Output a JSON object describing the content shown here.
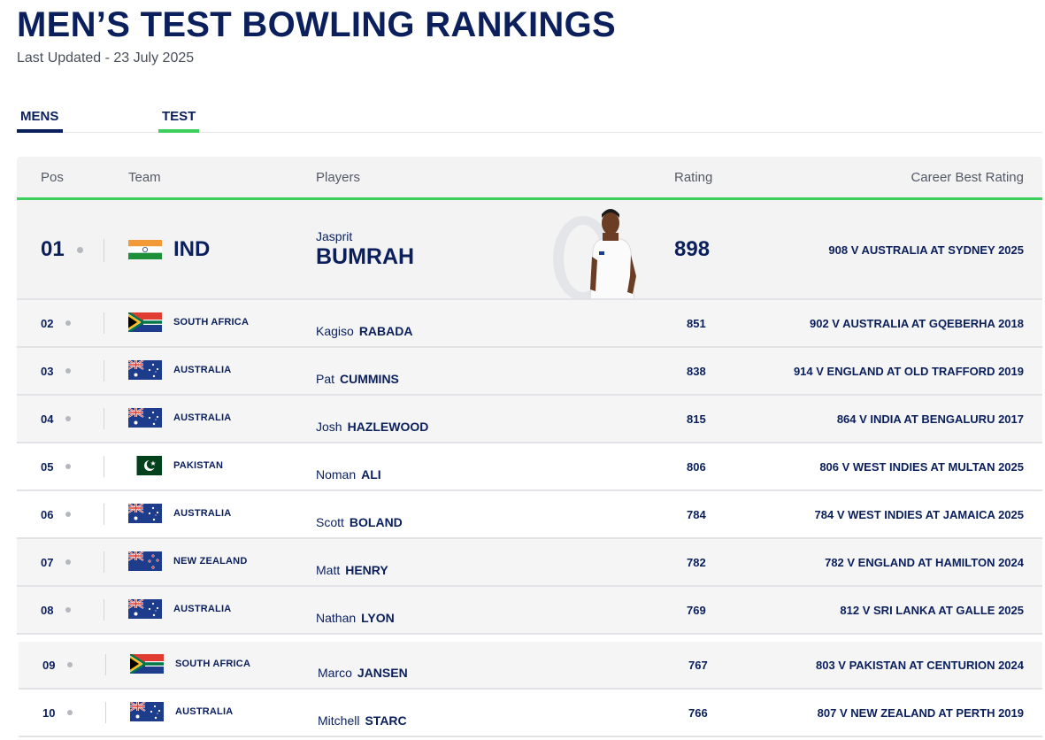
{
  "page": {
    "title": "MEN’S TEST BOWLING RANKINGS",
    "updated": "Last Updated - 23 July 2025"
  },
  "tabs": [
    {
      "label": "MENS",
      "active": true
    },
    {
      "label": "TEST",
      "active": true
    }
  ],
  "columns": {
    "pos": "Pos",
    "team": "Team",
    "players": "Players",
    "rating": "Rating",
    "best": "Career Best Rating"
  },
  "top": {
    "pos": "01",
    "team": "IND",
    "flag": "india-flag",
    "first": "Jasprit",
    "last": "BUMRAH",
    "rating": "898",
    "best": "908 V AUSTRALIA AT SYDNEY 2025"
  },
  "rows": [
    {
      "pos": "02",
      "team": "SOUTH AFRICA",
      "flag": "south-africa-flag",
      "first": "Kagiso",
      "last": "RABADA",
      "rating": "851",
      "best": "902 V AUSTRALIA AT GQEBERHA 2018"
    },
    {
      "pos": "03",
      "team": "AUSTRALIA",
      "flag": "australia-flag",
      "first": "Pat",
      "last": "CUMMINS",
      "rating": "838",
      "best": "914 V ENGLAND AT OLD TRAFFORD 2019"
    },
    {
      "pos": "04",
      "team": "AUSTRALIA",
      "flag": "australia-flag",
      "first": "Josh",
      "last": "HAZLEWOOD",
      "rating": "815",
      "best": "864 V INDIA AT BENGALURU 2017"
    },
    {
      "pos": "05",
      "team": "PAKISTAN",
      "flag": "pakistan-flag",
      "first": "Noman",
      "last": "ALI",
      "rating": "806",
      "best": "806 V WEST INDIES AT MULTAN 2025"
    },
    {
      "pos": "06",
      "team": "AUSTRALIA",
      "flag": "australia-flag",
      "first": "Scott",
      "last": "BOLAND",
      "rating": "784",
      "best": "784 V WEST INDIES AT JAMAICA 2025"
    },
    {
      "pos": "07",
      "team": "NEW ZEALAND",
      "flag": "new-zealand-flag",
      "first": "Matt",
      "last": "HENRY",
      "rating": "782",
      "best": "782 V ENGLAND AT HAMILTON 2024"
    },
    {
      "pos": "08",
      "team": "AUSTRALIA",
      "flag": "australia-flag",
      "first": "Nathan",
      "last": "LYON",
      "rating": "769",
      "best": "812 V SRI LANKA AT GALLE 2025"
    },
    {
      "pos": "09",
      "team": "SOUTH AFRICA",
      "flag": "south-africa-flag",
      "first": "Marco",
      "last": "JANSEN",
      "rating": "767",
      "best": "803 V PAKISTAN AT CENTURION 2024"
    },
    {
      "pos": "10",
      "team": "AUSTRALIA",
      "flag": "australia-flag",
      "first": "Mitchell",
      "last": "STARC",
      "rating": "766",
      "best": "807 V NEW ZEALAND AT PERTH 2019"
    }
  ],
  "colors": {
    "navy": "#0a1f5c",
    "accent_green": "#3ccf5c",
    "header_bg": "#f3f3f4"
  }
}
